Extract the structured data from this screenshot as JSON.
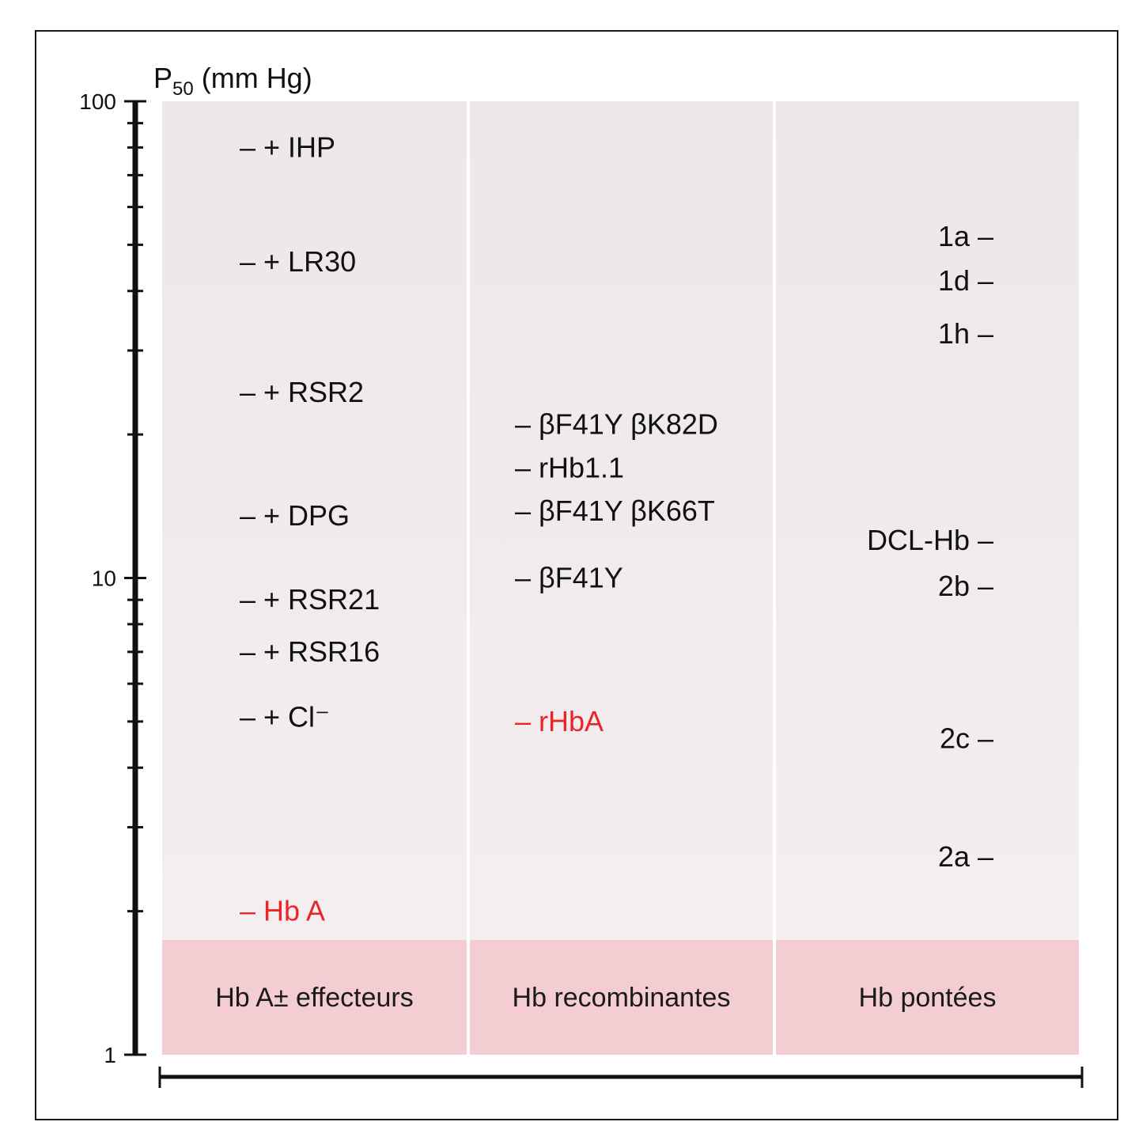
{
  "chart_data": {
    "type": "scatter",
    "ylabel": {
      "main": "P",
      "sub": "50",
      "unit": "(mm Hg)"
    },
    "yscale": "log",
    "ylim": [
      1,
      100
    ],
    "yticks": [
      "1",
      "10",
      "100"
    ],
    "categories": [
      "Hb A± effecteurs",
      "Hb recombinantes",
      "Hb pontées"
    ],
    "columns": [
      {
        "category": "Hb A± effecteurs",
        "points": [
          {
            "label": "– + IHP",
            "y": 80
          },
          {
            "label": "– + LR30",
            "y": 46
          },
          {
            "label": "– + RSR2",
            "y": 24.5
          },
          {
            "label": "– + DPG",
            "y": 13.5
          },
          {
            "label": "– + RSR21",
            "y": 9.0
          },
          {
            "label": "– + RSR16",
            "y": 7.0
          },
          {
            "label": "– + Cl⁻",
            "y": 5.1
          },
          {
            "label": "– Hb A",
            "y": 2.0,
            "color": "#e8262a"
          }
        ]
      },
      {
        "category": "Hb recombinantes",
        "points": [
          {
            "label": "– βF41Y βK82D",
            "y": 21
          },
          {
            "label": "– rHb1.1",
            "y": 17
          },
          {
            "label": "– βF41Y βK66T",
            "y": 13.8
          },
          {
            "label": "– βF41Y",
            "y": 10.0
          },
          {
            "label": "– rHbA",
            "y": 5.0,
            "color": "#e8262a"
          }
        ]
      },
      {
        "category": "Hb pontées",
        "points": [
          {
            "label": "1a –",
            "y": 52
          },
          {
            "label": "1d –",
            "y": 42
          },
          {
            "label": "1h –",
            "y": 32.5
          },
          {
            "label": "DCL-Hb –",
            "y": 12
          },
          {
            "label": "2b –",
            "y": 9.6
          },
          {
            "label": "2c –",
            "y": 4.6
          },
          {
            "label": "2a –",
            "y": 2.6
          }
        ]
      }
    ],
    "colors": {
      "default_text": "#111111",
      "highlight": "#e8262a",
      "panel": "#f1eaec",
      "category_band": "#f4cdd2"
    }
  }
}
